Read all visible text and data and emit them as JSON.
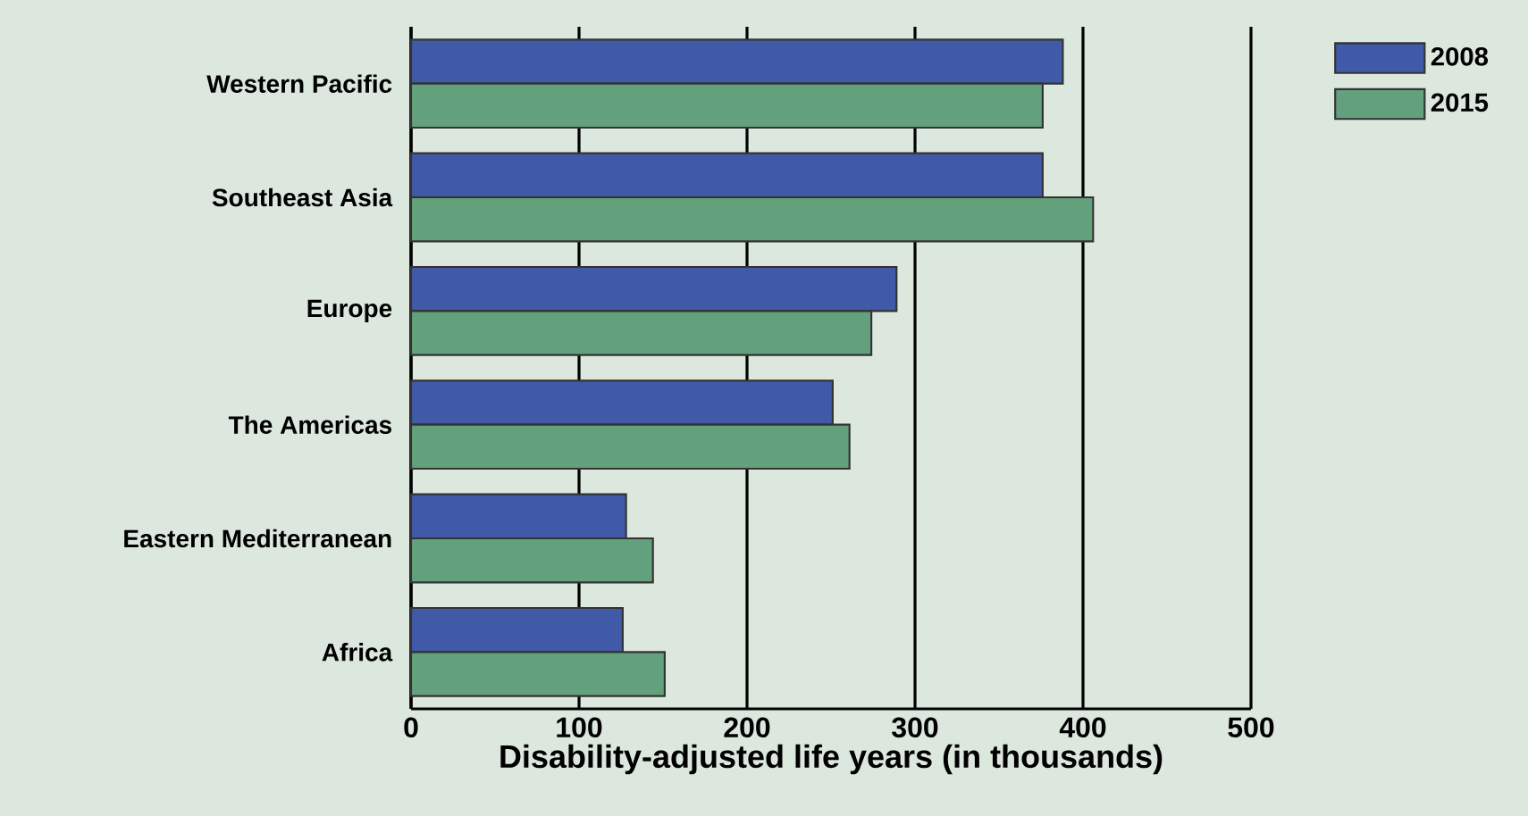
{
  "chart_data": {
    "type": "bar",
    "orientation": "horizontal",
    "xlabel": "Disability-adjusted life years (in thousands)",
    "categories": [
      "Western Pacific",
      "Southeast Asia",
      "Europe",
      "The Americas",
      "Eastern Mediterranean",
      "Africa"
    ],
    "series": [
      {
        "name": "2008",
        "color": "#405aa8",
        "values": [
          388,
          376,
          289,
          251,
          128,
          126
        ]
      },
      {
        "name": "2015",
        "color": "#63a07c",
        "values": [
          376,
          406,
          274,
          261,
          144,
          151
        ]
      }
    ],
    "xlim": [
      0,
      500
    ],
    "xticks": [
      0,
      100,
      200,
      300,
      400,
      500
    ],
    "grid": "x",
    "legend": "top right"
  }
}
